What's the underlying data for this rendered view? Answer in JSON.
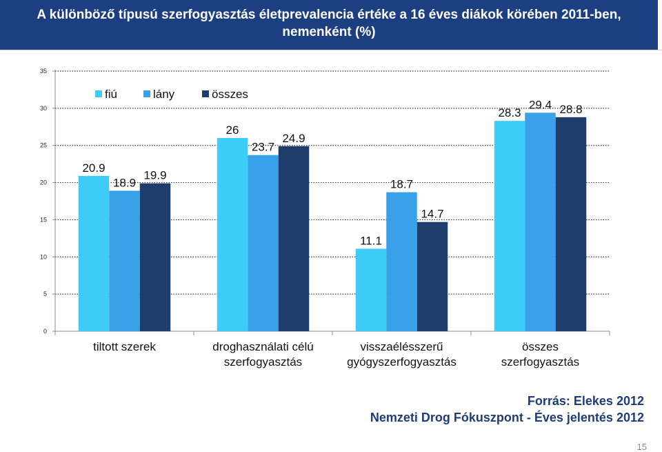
{
  "header": {
    "title": "A különböző típusú szerfogyasztás életprevalencia értéke a 16 éves diákok körében 2011-ben, nemenként (%)"
  },
  "chart_data": {
    "type": "bar",
    "categories": [
      [
        "tiltott szerek"
      ],
      [
        "droghasználati célú",
        "szerfogyasztás"
      ],
      [
        "visszaélésszerű",
        "gyógyszerfogyasztás"
      ],
      [
        "összes",
        "szerfogyasztás"
      ]
    ],
    "series": [
      {
        "name": "fiú",
        "color": "#3fcbf7",
        "values": [
          20.9,
          26,
          11.1,
          28.3
        ],
        "labels": [
          "20.9",
          "26",
          "11.1",
          "28.3"
        ]
      },
      {
        "name": "lány",
        "color": "#38a1e7",
        "values": [
          18.9,
          23.7,
          18.7,
          29.4
        ],
        "labels": [
          "18.9",
          "23.7",
          "18.7",
          "29.4"
        ]
      },
      {
        "name": "összes",
        "color": "#1f3d6b",
        "values": [
          19.9,
          24.9,
          14.7,
          28.8
        ],
        "labels": [
          "19.9",
          "24.9",
          "14.7",
          "28.8"
        ]
      }
    ],
    "ylim": [
      0,
      35
    ],
    "yticks": [
      0,
      5,
      10,
      15,
      20,
      25,
      30,
      35
    ],
    "grid": true,
    "legend": "top-left"
  },
  "footer": {
    "source_line1": "Forrás: Elekes 2012",
    "source_line2": "Nemzeti Drog Fókuszpont  - Éves jelentés 2012",
    "page_number": "15"
  }
}
